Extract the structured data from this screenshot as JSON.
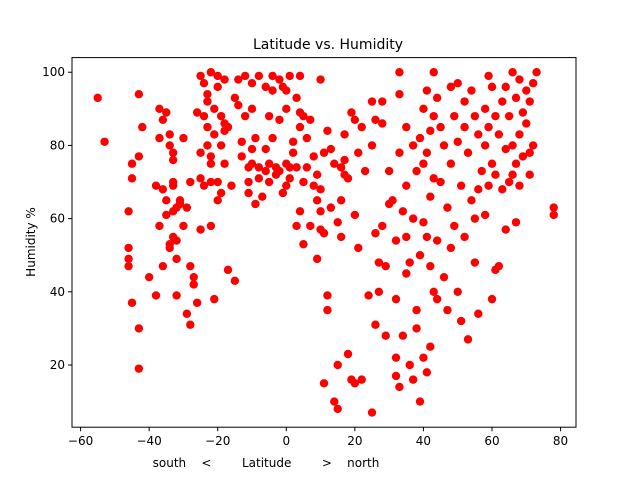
{
  "chart_data": {
    "type": "scatter",
    "title": "Latitude vs. Humidity",
    "xlabel": "south    <        Latitude        >    north",
    "ylabel": "Humidity %",
    "xlim": [
      -62.5,
      84.5
    ],
    "ylim": [
      3,
      104
    ],
    "xticks": [
      -60,
      -40,
      -20,
      0,
      20,
      40,
      60,
      80
    ],
    "yticks": [
      20,
      40,
      60,
      80,
      100
    ],
    "marker_color": "#ff0000",
    "grid": false,
    "legend": "none",
    "points": [
      [
        -55,
        93
      ],
      [
        -53,
        81
      ],
      [
        -46,
        62
      ],
      [
        -46,
        52
      ],
      [
        -46,
        49
      ],
      [
        -46,
        47
      ],
      [
        -45,
        37
      ],
      [
        -45,
        75
      ],
      [
        -45,
        71
      ],
      [
        -43,
        94
      ],
      [
        -43,
        77
      ],
      [
        -43,
        30
      ],
      [
        -43,
        19
      ],
      [
        -42,
        85
      ],
      [
        -40,
        44
      ],
      [
        -38,
        69
      ],
      [
        -38,
        39
      ],
      [
        -37,
        90
      ],
      [
        -37,
        82
      ],
      [
        -37,
        58
      ],
      [
        -36,
        68
      ],
      [
        -36,
        87
      ],
      [
        -36,
        47
      ],
      [
        -35,
        61
      ],
      [
        -35,
        65
      ],
      [
        -35,
        89
      ],
      [
        -34,
        83
      ],
      [
        -34,
        80
      ],
      [
        -34,
        53
      ],
      [
        -34,
        52
      ],
      [
        -33,
        78
      ],
      [
        -33,
        76
      ],
      [
        -33,
        70
      ],
      [
        -33,
        69
      ],
      [
        -33,
        62
      ],
      [
        -33,
        55
      ],
      [
        -32,
        49
      ],
      [
        -32,
        63
      ],
      [
        -32,
        39
      ],
      [
        -32,
        54
      ],
      [
        -31,
        65
      ],
      [
        -31,
        64
      ],
      [
        -30,
        58
      ],
      [
        -30,
        82
      ],
      [
        -29,
        63
      ],
      [
        -29,
        34
      ],
      [
        -28,
        31
      ],
      [
        -28,
        47
      ],
      [
        -28,
        70
      ],
      [
        -27,
        44
      ],
      [
        -27,
        42
      ],
      [
        -26,
        37
      ],
      [
        -26,
        89
      ],
      [
        -25,
        99
      ],
      [
        -25,
        71
      ],
      [
        -25,
        57
      ],
      [
        -25,
        78
      ],
      [
        -24,
        69
      ],
      [
        -24,
        97
      ],
      [
        -24,
        88
      ],
      [
        -23,
        94
      ],
      [
        -23,
        92
      ],
      [
        -23,
        85
      ],
      [
        -23,
        80
      ],
      [
        -22,
        100
      ],
      [
        -22,
        75
      ],
      [
        -22,
        70
      ],
      [
        -22,
        77
      ],
      [
        -22,
        58
      ],
      [
        -21,
        90
      ],
      [
        -21,
        38
      ],
      [
        -21,
        83
      ],
      [
        -20,
        99
      ],
      [
        -20,
        96
      ],
      [
        -20,
        65
      ],
      [
        -20,
        70
      ],
      [
        -19,
        88
      ],
      [
        -19,
        80
      ],
      [
        -19,
        67
      ],
      [
        -18,
        98
      ],
      [
        -18,
        86
      ],
      [
        -18,
        75
      ],
      [
        -18,
        84
      ],
      [
        -17,
        46
      ],
      [
        -17,
        85
      ],
      [
        -16,
        69
      ],
      [
        -15,
        93
      ],
      [
        -15,
        43
      ],
      [
        -14,
        98
      ],
      [
        -14,
        91
      ],
      [
        -13,
        81
      ],
      [
        -13,
        77
      ],
      [
        -12,
        99
      ],
      [
        -12,
        88
      ],
      [
        -11,
        74
      ],
      [
        -11,
        70
      ],
      [
        -11,
        67
      ],
      [
        -10,
        97
      ],
      [
        -10,
        90
      ],
      [
        -10,
        75
      ],
      [
        -10,
        79
      ],
      [
        -9,
        82
      ],
      [
        -9,
        64
      ],
      [
        -8,
        99
      ],
      [
        -8,
        74
      ],
      [
        -8,
        71
      ],
      [
        -7,
        66
      ],
      [
        -6,
        96
      ],
      [
        -6,
        79
      ],
      [
        -6,
        73
      ],
      [
        -5,
        88
      ],
      [
        -5,
        70
      ],
      [
        -5,
        75
      ],
      [
        -4,
        99
      ],
      [
        -4,
        95
      ],
      [
        -4,
        82
      ],
      [
        -3,
        74
      ],
      [
        -3,
        72
      ],
      [
        -2,
        98
      ],
      [
        -2,
        87
      ],
      [
        -2,
        73
      ],
      [
        -1,
        67
      ],
      [
        -1,
        96
      ],
      [
        0,
        95
      ],
      [
        0,
        90
      ],
      [
        0,
        75
      ],
      [
        0,
        69
      ],
      [
        1,
        99
      ],
      [
        1,
        74
      ],
      [
        1,
        71
      ],
      [
        2,
        81
      ],
      [
        2,
        78
      ],
      [
        3,
        93
      ],
      [
        3,
        74
      ],
      [
        3,
        58
      ],
      [
        4,
        99
      ],
      [
        4,
        89
      ],
      [
        4,
        85
      ],
      [
        4,
        62
      ],
      [
        5,
        88
      ],
      [
        5,
        53
      ],
      [
        5,
        70
      ],
      [
        6,
        82
      ],
      [
        6,
        74
      ],
      [
        7,
        87
      ],
      [
        7,
        58
      ],
      [
        8,
        77
      ],
      [
        8,
        69
      ],
      [
        9,
        49
      ],
      [
        9,
        72
      ],
      [
        9,
        65
      ],
      [
        10,
        68
      ],
      [
        10,
        62
      ],
      [
        10,
        57
      ],
      [
        10,
        98
      ],
      [
        11,
        78
      ],
      [
        11,
        56
      ],
      [
        11,
        15
      ],
      [
        12,
        39
      ],
      [
        12,
        35
      ],
      [
        12,
        84
      ],
      [
        13,
        79
      ],
      [
        13,
        63
      ],
      [
        14,
        10
      ],
      [
        14,
        75
      ],
      [
        15,
        59
      ],
      [
        15,
        20
      ],
      [
        15,
        8
      ],
      [
        16,
        74
      ],
      [
        16,
        65
      ],
      [
        16,
        55
      ],
      [
        17,
        83
      ],
      [
        17,
        76
      ],
      [
        17,
        72
      ],
      [
        18,
        71
      ],
      [
        18,
        23
      ],
      [
        19,
        89
      ],
      [
        19,
        16
      ],
      [
        20,
        87
      ],
      [
        20,
        61
      ],
      [
        20,
        15
      ],
      [
        21,
        78
      ],
      [
        21,
        52
      ],
      [
        22,
        16
      ],
      [
        22,
        85
      ],
      [
        23,
        73
      ],
      [
        24,
        39
      ],
      [
        25,
        92
      ],
      [
        25,
        7
      ],
      [
        25,
        80
      ],
      [
        26,
        87
      ],
      [
        26,
        31
      ],
      [
        26,
        56
      ],
      [
        27,
        40
      ],
      [
        27,
        48
      ],
      [
        28,
        92
      ],
      [
        28,
        58
      ],
      [
        28,
        86
      ],
      [
        29,
        28
      ],
      [
        29,
        47
      ],
      [
        30,
        64
      ],
      [
        30,
        73
      ],
      [
        31,
        65
      ],
      [
        32,
        22
      ],
      [
        32,
        38
      ],
      [
        32,
        17
      ],
      [
        32,
        54
      ],
      [
        33,
        100
      ],
      [
        33,
        94
      ],
      [
        33,
        78
      ],
      [
        33,
        14
      ],
      [
        34,
        62
      ],
      [
        34,
        28
      ],
      [
        35,
        85
      ],
      [
        35,
        69
      ],
      [
        35,
        55
      ],
      [
        35,
        45
      ],
      [
        36,
        20
      ],
      [
        36,
        48
      ],
      [
        37,
        80
      ],
      [
        37,
        16
      ],
      [
        37,
        60
      ],
      [
        38,
        35
      ],
      [
        38,
        73
      ],
      [
        38,
        30
      ],
      [
        39,
        10
      ],
      [
        39,
        82
      ],
      [
        39,
        50
      ],
      [
        40,
        90
      ],
      [
        40,
        75
      ],
      [
        40,
        59
      ],
      [
        40,
        22
      ],
      [
        41,
        95
      ],
      [
        41,
        78
      ],
      [
        41,
        55
      ],
      [
        41,
        18
      ],
      [
        42,
        84
      ],
      [
        42,
        66
      ],
      [
        42,
        47
      ],
      [
        42,
        25
      ],
      [
        43,
        100
      ],
      [
        43,
        88
      ],
      [
        43,
        71
      ],
      [
        43,
        40
      ],
      [
        44,
        93
      ],
      [
        44,
        54
      ],
      [
        44,
        38
      ],
      [
        45,
        85
      ],
      [
        45,
        70
      ],
      [
        46,
        80
      ],
      [
        46,
        44
      ],
      [
        47,
        63
      ],
      [
        47,
        35
      ],
      [
        48,
        96
      ],
      [
        48,
        75
      ],
      [
        48,
        52
      ],
      [
        49,
        88
      ],
      [
        49,
        58
      ],
      [
        50,
        97
      ],
      [
        50,
        81
      ],
      [
        50,
        40
      ],
      [
        51,
        69
      ],
      [
        51,
        32
      ],
      [
        52,
        92
      ],
      [
        52,
        85
      ],
      [
        52,
        55
      ],
      [
        53,
        78
      ],
      [
        53,
        27
      ],
      [
        54,
        95
      ],
      [
        54,
        65
      ],
      [
        55,
        88
      ],
      [
        55,
        60
      ],
      [
        55,
        48
      ],
      [
        56,
        83
      ],
      [
        56,
        68
      ],
      [
        56,
        34
      ],
      [
        57,
        73
      ],
      [
        58,
        90
      ],
      [
        58,
        80
      ],
      [
        58,
        61
      ],
      [
        59,
        99
      ],
      [
        59,
        85
      ],
      [
        59,
        69
      ],
      [
        60,
        96
      ],
      [
        60,
        75
      ],
      [
        60,
        38
      ],
      [
        61,
        88
      ],
      [
        61,
        72
      ],
      [
        61,
        46
      ],
      [
        62,
        83
      ],
      [
        62,
        47
      ],
      [
        63,
        92
      ],
      [
        63,
        68
      ],
      [
        64,
        96
      ],
      [
        64,
        79
      ],
      [
        64,
        57
      ],
      [
        65,
        88
      ],
      [
        65,
        70
      ],
      [
        66,
        100
      ],
      [
        66,
        80
      ],
      [
        66,
        72
      ],
      [
        67,
        93
      ],
      [
        67,
        75
      ],
      [
        67,
        59
      ],
      [
        68,
        98
      ],
      [
        68,
        83
      ],
      [
        68,
        69
      ],
      [
        69,
        89
      ],
      [
        69,
        77
      ],
      [
        70,
        95
      ],
      [
        70,
        86
      ],
      [
        71,
        92
      ],
      [
        71,
        78
      ],
      [
        71,
        72
      ],
      [
        72,
        97
      ],
      [
        72,
        80
      ],
      [
        73,
        100
      ],
      [
        78,
        63
      ],
      [
        78,
        61
      ]
    ]
  }
}
